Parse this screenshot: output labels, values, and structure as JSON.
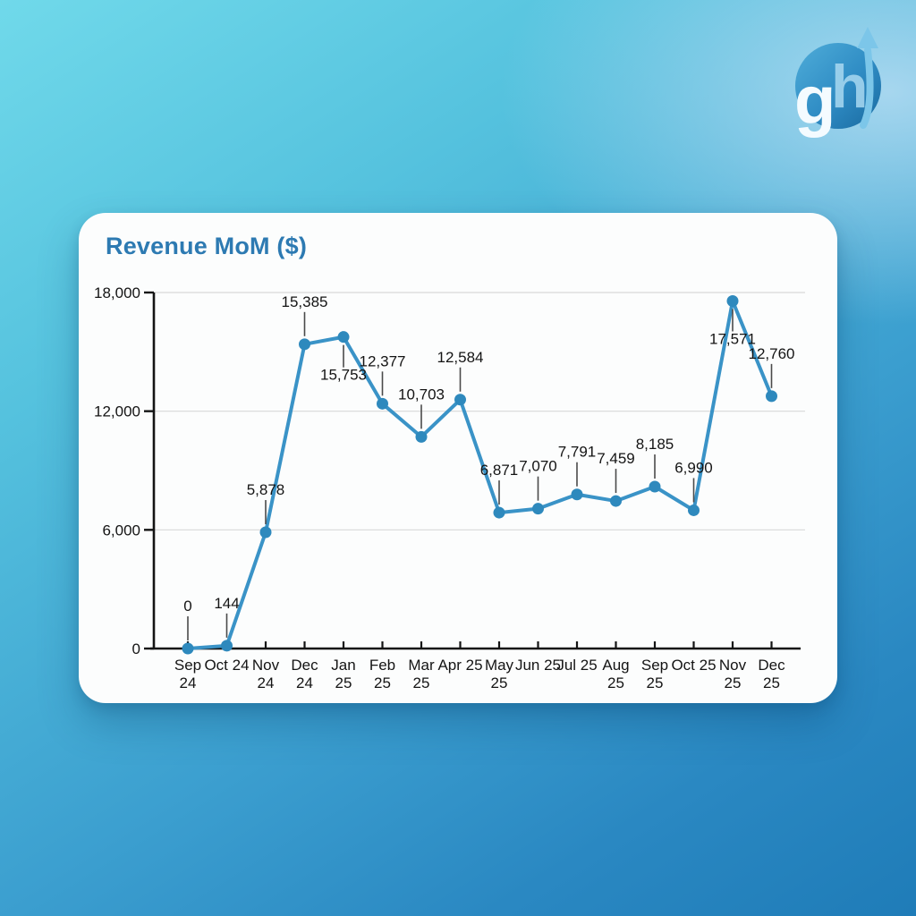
{
  "brand_logo": {
    "letter_g": "g",
    "letter_h": "h",
    "arrow_icon": "up-arrow-icon",
    "circle_color_top": "#4fadd9",
    "circle_color_bottom": "#19699f",
    "g_color": "#f4fbff",
    "h_color": "#a9d9f1",
    "arrow_color": "#7cc6e9"
  },
  "card": {
    "background": "#fcfdfd"
  },
  "chart_data": {
    "type": "line",
    "title": "Revenue MoM ($)",
    "title_color": "#2d7ab2",
    "categories": [
      "Sep 24",
      "Oct 24",
      "Nov 24",
      "Dec 24",
      "Jan 25",
      "Feb 25",
      "Mar 25",
      "Apr 25",
      "May 25",
      "Jun 25",
      "Jul 25",
      "Aug 25",
      "Sep 25",
      "Oct 25",
      "Nov 25",
      "Dec 25"
    ],
    "category_lines": [
      [
        "Sep",
        "24"
      ],
      [
        "Oct 24"
      ],
      [
        "Nov",
        "24"
      ],
      [
        "Dec",
        "24"
      ],
      [
        "Jan",
        "25"
      ],
      [
        "Feb",
        "25"
      ],
      [
        "Mar",
        "25"
      ],
      [
        "Apr 25"
      ],
      [
        "May",
        "25"
      ],
      [
        "Jun 25"
      ],
      [
        "Jul 25"
      ],
      [
        "Aug",
        "25"
      ],
      [
        "Sep",
        "25"
      ],
      [
        "Oct 25"
      ],
      [
        "Nov",
        "25"
      ],
      [
        "Dec",
        "25"
      ]
    ],
    "values": [
      0,
      144,
      5878,
      15385,
      15753,
      12377,
      10703,
      12584,
      6871,
      7070,
      7791,
      7459,
      8185,
      6990,
      17571,
      12760
    ],
    "point_labels": [
      "0",
      "144",
      "5,878",
      "15,385",
      "15,753",
      "12,377",
      "10,703",
      "12,584",
      "6,871",
      "7,070",
      "7,791",
      "7,459",
      "8,185",
      "6,990",
      "17,571",
      "12,760"
    ],
    "label_position": [
      "above",
      "above",
      "above",
      "above",
      "below",
      "above",
      "above",
      "above",
      "above",
      "above",
      "above",
      "above",
      "above",
      "above",
      "below",
      "above"
    ],
    "xlabel": "",
    "ylabel": "",
    "y_ticks": [
      0,
      6000,
      12000,
      18000
    ],
    "y_tick_labels": [
      "0",
      "6,000",
      "12,000",
      "18,000"
    ],
    "ylim": [
      0,
      18000
    ],
    "grid": true,
    "legend": false,
    "line_color": "#3a93c7",
    "point_color": "#2e89bd",
    "axis_color": "#141414",
    "grid_color": "#d8d8d8",
    "leader_color": "#4a4a4a",
    "text_color": "#141414"
  }
}
